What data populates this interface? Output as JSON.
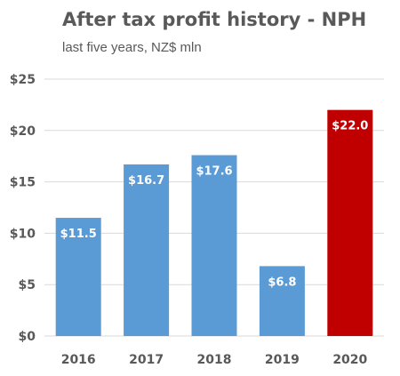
{
  "chart_data": {
    "type": "bar",
    "title": "After tax profit history - NPH",
    "subtitle": "last five years, NZ$ mln",
    "categories": [
      "2016",
      "2017",
      "2018",
      "2019",
      "2020"
    ],
    "values": [
      11.5,
      16.7,
      17.6,
      6.8,
      22.0
    ],
    "data_labels": [
      "$11.5",
      "$16.7",
      "$17.6",
      "$6.8",
      "$22.0"
    ],
    "bar_colors": [
      "#5b9bd5",
      "#5b9bd5",
      "#5b9bd5",
      "#5b9bd5",
      "#c00000"
    ],
    "ylim": [
      0,
      25
    ],
    "yticks": [
      0,
      5,
      10,
      15,
      20,
      25
    ],
    "ytick_labels": [
      "$0",
      "$5",
      "$10",
      "$15",
      "$20",
      "$25"
    ],
    "grid": true,
    "gridline_color": "#d9d9d9",
    "legend": "none",
    "xlabel": "",
    "ylabel": ""
  }
}
